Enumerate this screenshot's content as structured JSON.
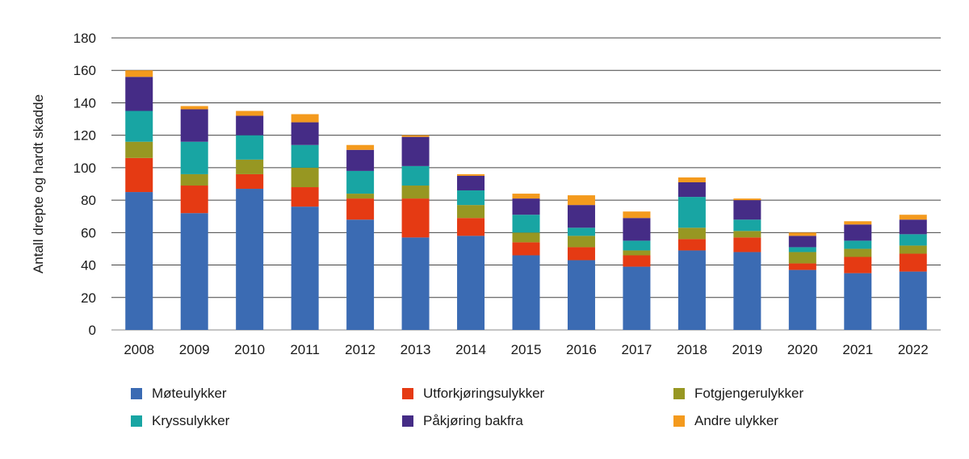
{
  "chart_data": {
    "type": "bar",
    "stacked": true,
    "title": "",
    "xlabel": "",
    "ylabel": "Antall drepte og hardt skadde",
    "ylim": [
      0,
      180
    ],
    "yticks": [
      0,
      20,
      40,
      60,
      80,
      100,
      120,
      140,
      160,
      180
    ],
    "grid": true,
    "legend_position": "bottom",
    "categories": [
      "2008",
      "2009",
      "2010",
      "2011",
      "2012",
      "2013",
      "2014",
      "2015",
      "2016",
      "2017",
      "2018",
      "2019",
      "2020",
      "2021",
      "2022"
    ],
    "series": [
      {
        "name": "Møteulykker",
        "color": "#3b6bb3",
        "values": [
          85,
          72,
          87,
          76,
          68,
          57,
          58,
          46,
          43,
          39,
          49,
          48,
          37,
          35,
          36
        ]
      },
      {
        "name": "Utforkjøringsulykker",
        "color": "#e53a13",
        "values": [
          21,
          17,
          9,
          12,
          13,
          24,
          11,
          8,
          8,
          7,
          7,
          9,
          4,
          10,
          11
        ]
      },
      {
        "name": "Fotgjengerulykker",
        "color": "#979722",
        "values": [
          10,
          7,
          9,
          12,
          3,
          8,
          8,
          6,
          7,
          3,
          7,
          4,
          7,
          5,
          5
        ]
      },
      {
        "name": "Kryssulykker",
        "color": "#18a5a3",
        "values": [
          19,
          20,
          15,
          14,
          14,
          12,
          9,
          11,
          5,
          6,
          19,
          7,
          3,
          5,
          7
        ]
      },
      {
        "name": "Påkjøring bakfra",
        "color": "#452c86",
        "values": [
          21,
          20,
          12,
          14,
          13,
          18,
          9,
          10,
          14,
          14,
          9,
          12,
          7,
          10,
          9
        ]
      },
      {
        "name": "Andre ulykker",
        "color": "#f49a1d",
        "values": [
          4,
          2,
          3,
          5,
          3,
          1,
          1,
          3,
          6,
          4,
          3,
          1,
          2,
          2,
          3
        ]
      }
    ]
  }
}
